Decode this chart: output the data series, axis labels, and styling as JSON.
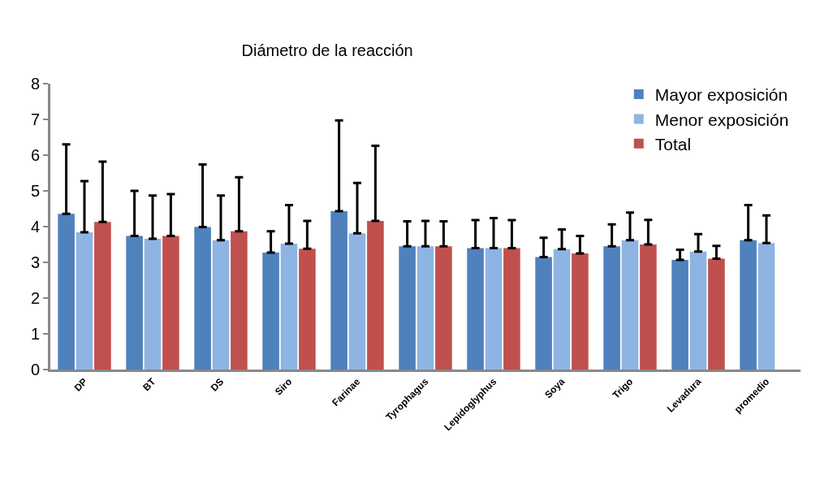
{
  "chart_data": {
    "type": "bar",
    "title": "Diámetro de la reacción",
    "categories": [
      "DP",
      "BT",
      "DS",
      "Siro",
      "Farinae",
      "Tyrophagus",
      "Lepidoglyphus",
      "Soya",
      "Trigo",
      "Levadura",
      "promedio"
    ],
    "series": [
      {
        "name": "Mayor exposición",
        "color": "#4f81bd",
        "values": [
          4.36,
          3.74,
          3.99,
          3.27,
          4.43,
          3.45,
          3.4,
          3.15,
          3.45,
          3.07,
          3.62
        ],
        "errors": [
          [
            4.36,
            6.3
          ],
          [
            3.74,
            5.0
          ],
          [
            3.99,
            5.74
          ],
          [
            3.27,
            3.87
          ],
          [
            4.43,
            6.97
          ],
          [
            3.45,
            4.15
          ],
          [
            3.4,
            4.18
          ],
          [
            3.15,
            3.69
          ],
          [
            3.45,
            4.06
          ],
          [
            3.07,
            3.35
          ],
          [
            3.62,
            4.6
          ]
        ]
      },
      {
        "name": "Menor exposición",
        "color": "#8eb4e3",
        "values": [
          3.84,
          3.66,
          3.62,
          3.52,
          3.81,
          3.45,
          3.4,
          3.37,
          3.62,
          3.3,
          3.54
        ],
        "errors": [
          [
            3.84,
            5.27
          ],
          [
            3.66,
            4.87
          ],
          [
            3.62,
            4.87
          ],
          [
            3.52,
            4.6
          ],
          [
            3.81,
            5.22
          ],
          [
            3.45,
            4.16
          ],
          [
            3.4,
            4.24
          ],
          [
            3.37,
            3.92
          ],
          [
            3.62,
            4.39
          ],
          [
            3.3,
            3.79
          ],
          [
            3.54,
            4.31
          ]
        ]
      },
      {
        "name": "Total",
        "color": "#c0504d",
        "values": [
          4.13,
          3.74,
          3.87,
          3.38,
          4.16,
          3.45,
          3.4,
          3.25,
          3.5,
          3.1,
          null
        ],
        "errors": [
          [
            4.13,
            5.82
          ],
          [
            3.74,
            4.91
          ],
          [
            3.87,
            5.38
          ],
          [
            3.38,
            4.16
          ],
          [
            4.16,
            6.26
          ],
          [
            3.45,
            4.15
          ],
          [
            3.4,
            4.18
          ],
          [
            3.25,
            3.74
          ],
          [
            3.5,
            4.19
          ],
          [
            3.1,
            3.46
          ],
          null
        ]
      }
    ],
    "ylim": [
      0,
      8
    ],
    "yticks": [
      0,
      1,
      2,
      3,
      4,
      5,
      6,
      7,
      8
    ],
    "grid": false,
    "legend": "top right"
  }
}
